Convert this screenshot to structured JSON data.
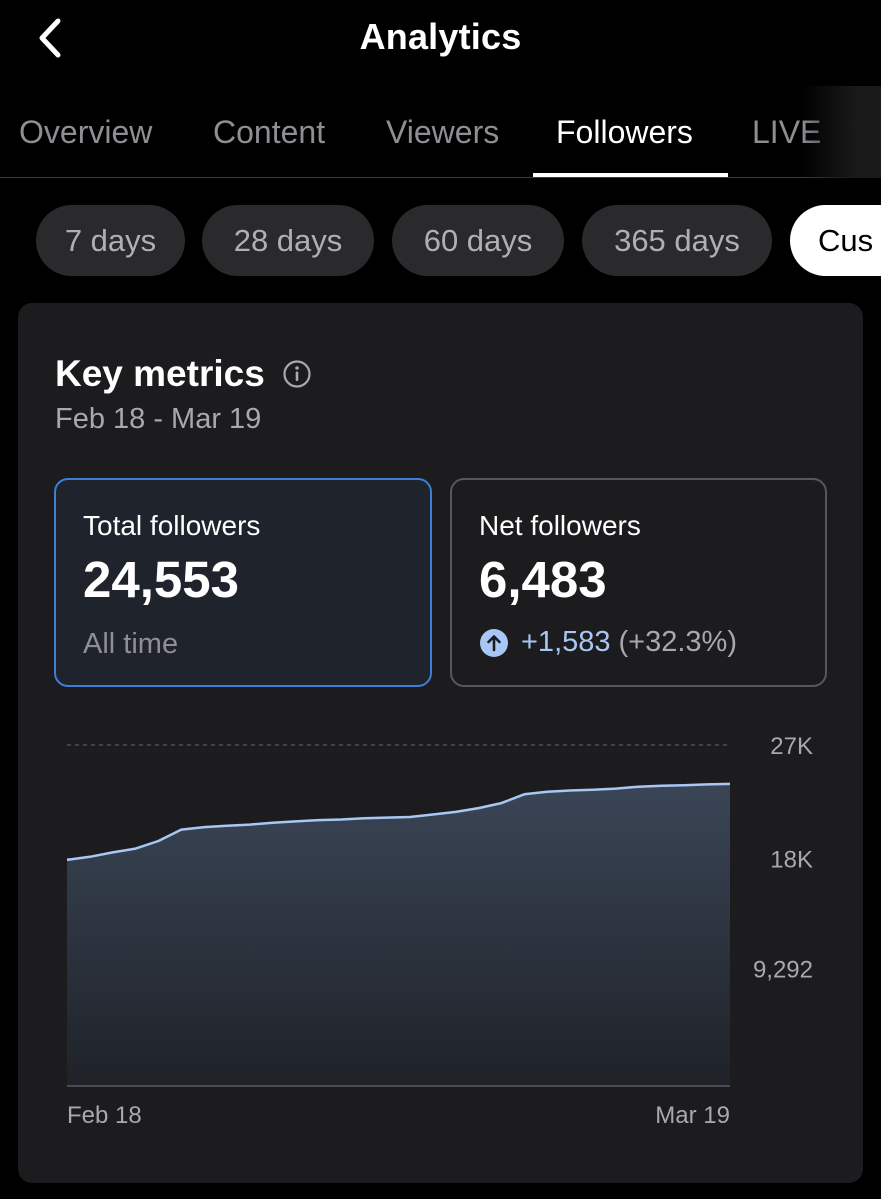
{
  "header": {
    "title": "Analytics"
  },
  "tabs": [
    {
      "label": "Overview"
    },
    {
      "label": "Content"
    },
    {
      "label": "Viewers"
    },
    {
      "label": "Followers"
    },
    {
      "label": "LIVE"
    }
  ],
  "ranges": [
    {
      "label": "7 days"
    },
    {
      "label": "28 days"
    },
    {
      "label": "60 days"
    },
    {
      "label": "365 days"
    },
    {
      "label": "Cus"
    }
  ],
  "card": {
    "title": "Key metrics",
    "date_range": "Feb 18 - Mar 19",
    "total": {
      "label": "Total followers",
      "value": "24,553",
      "sub": "All time"
    },
    "net": {
      "label": "Net followers",
      "value": "6,483",
      "change": "+1,583",
      "change_pct": "(+32.3%)"
    }
  },
  "colors": {
    "accent": "#3d7fd6",
    "line": "#a9c7f5",
    "background": "#000000",
    "card": "#1c1c1e"
  },
  "chart_data": {
    "type": "area",
    "title": "",
    "xlabel": "",
    "ylabel": "",
    "x_tick_labels": [
      "Feb 18",
      "Mar 19"
    ],
    "y_ticks": [
      {
        "value": 27000,
        "label": "27K"
      },
      {
        "value": 18000,
        "label": "18K"
      },
      {
        "value": 9292,
        "label": "9,292"
      }
    ],
    "ylim": [
      0,
      27000
    ],
    "series": [
      {
        "name": "Total followers",
        "values": [
          17900,
          18150,
          18500,
          18800,
          19400,
          20300,
          20500,
          20600,
          20700,
          20850,
          20950,
          21050,
          21100,
          21200,
          21250,
          21300,
          21500,
          21700,
          22000,
          22400,
          23100,
          23300,
          23400,
          23450,
          23550,
          23700,
          23780,
          23820,
          23880,
          23920
        ]
      }
    ],
    "grid": true
  }
}
